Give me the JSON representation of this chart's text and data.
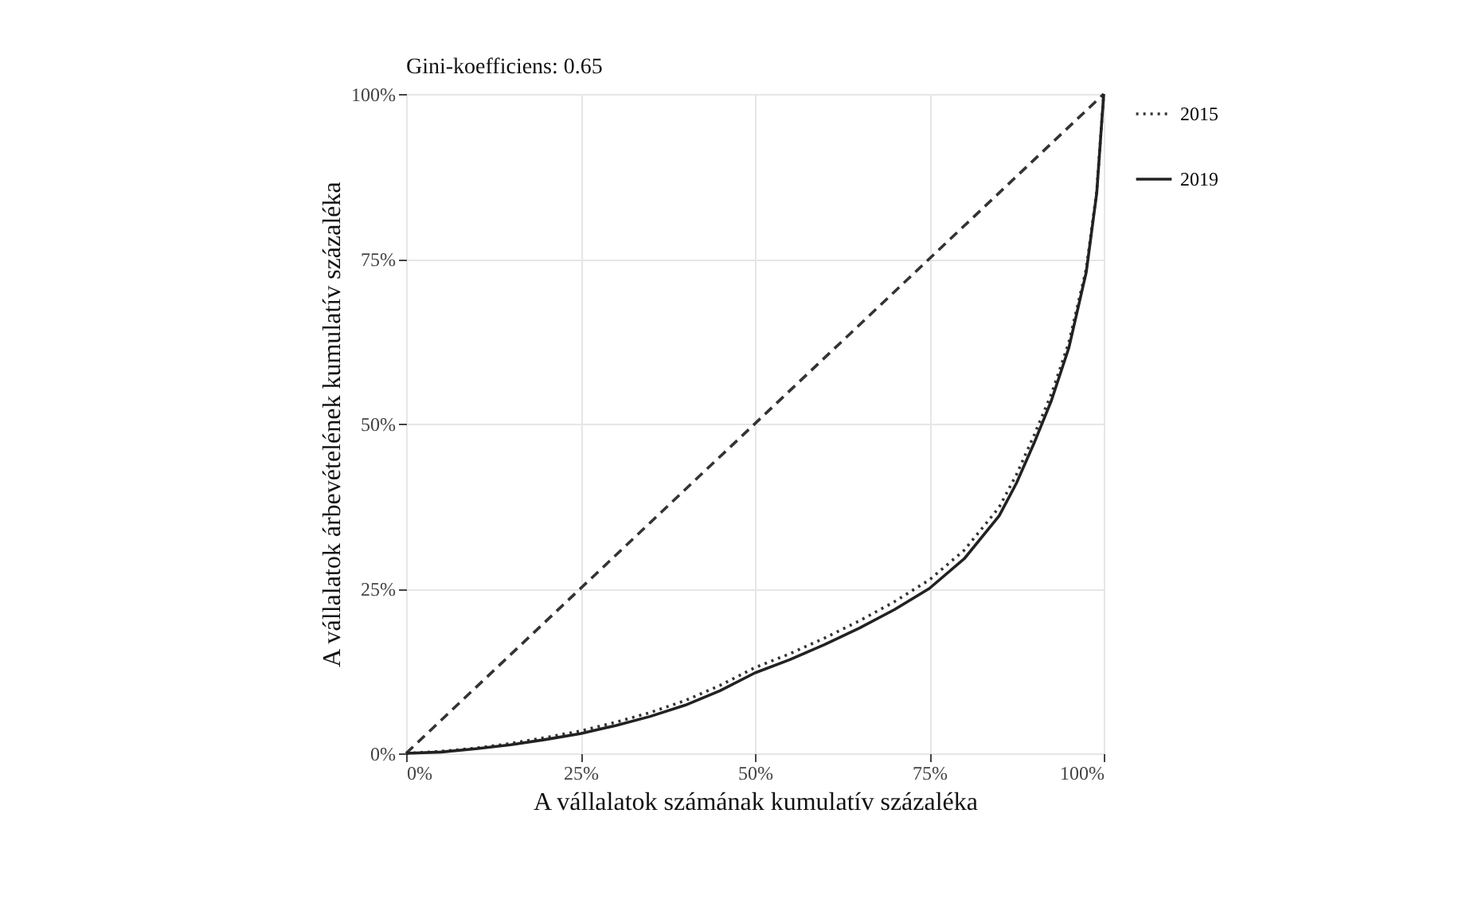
{
  "chart_data": {
    "type": "line",
    "title": "Gini-koefficiens: 0.65",
    "xlabel": "A vállalatok számának kumulatív százaléka",
    "ylabel": "A vállalatok árbevételének kumulatív százaléka",
    "series": [
      {
        "x": [
          0,
          100
        ],
        "values": [
          0,
          100
        ],
        "color": "#333333",
        "line_style": "dashed"
      },
      {
        "name": "2015",
        "color": "#333333",
        "line_style": "dotted",
        "x": [
          0,
          5,
          10,
          15,
          20,
          25,
          30,
          35,
          40,
          45,
          50,
          55,
          60,
          65,
          70,
          75,
          80,
          85,
          87.5,
          90,
          92.5,
          95,
          97.5,
          99,
          100
        ],
        "values": [
          0,
          0.3,
          0.8,
          1.5,
          2.4,
          3.4,
          4.7,
          6.2,
          8.0,
          10.3,
          13.0,
          15.1,
          17.5,
          20.1,
          23.0,
          26.3,
          30.8,
          37.3,
          42.3,
          48.2,
          54.5,
          62.3,
          73.5,
          85.3,
          100
        ]
      },
      {
        "name": "2019",
        "color": "#222222",
        "line_style": "solid",
        "x": [
          0,
          5,
          10,
          15,
          20,
          25,
          30,
          35,
          40,
          45,
          50,
          55,
          60,
          65,
          70,
          75,
          80,
          85,
          87.5,
          90,
          92.5,
          95,
          97.5,
          99,
          100
        ],
        "values": [
          0,
          0.2,
          0.7,
          1.3,
          2.1,
          3.0,
          4.2,
          5.6,
          7.3,
          9.5,
          12.2,
          14.2,
          16.5,
          19.0,
          21.8,
          25.0,
          29.5,
          36.0,
          41.0,
          47.0,
          53.5,
          61.5,
          73.0,
          85.0,
          100
        ]
      }
    ],
    "xlim": [
      0,
      100
    ],
    "ylim": [
      0,
      100
    ],
    "xticks": [
      {
        "value": 0,
        "label": "0%"
      },
      {
        "value": 25,
        "label": "25%"
      },
      {
        "value": 50,
        "label": "50%"
      },
      {
        "value": 75,
        "label": "75%"
      },
      {
        "value": 100,
        "label": "100%"
      }
    ],
    "yticks": [
      {
        "value": 0,
        "label": "0%"
      },
      {
        "value": 25,
        "label": "25%"
      },
      {
        "value": 50,
        "label": "50%"
      },
      {
        "value": 75,
        "label": "75%"
      },
      {
        "value": 100,
        "label": "100%"
      }
    ],
    "grid": true,
    "legend": "right",
    "marker": "none"
  }
}
